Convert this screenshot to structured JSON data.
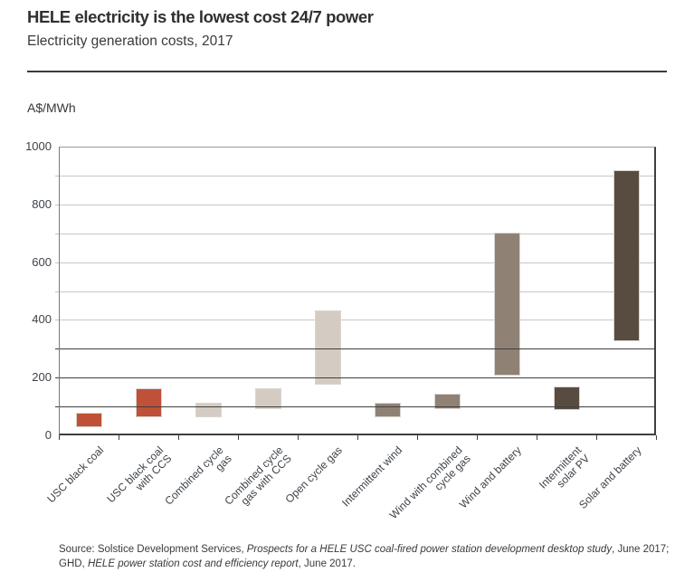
{
  "header": {
    "title": "HELE electricity is the lowest cost 24/7 power",
    "subtitle": "Electricity generation costs, 2017"
  },
  "chart_data": {
    "type": "bar",
    "subtype": "floating_range_columns",
    "title": "HELE electricity is the lowest cost 24/7 power",
    "subtitle": "Electricity generation costs, 2017",
    "ylabel": "A$/MWh",
    "xlabel": "",
    "ylim": [
      0,
      1000
    ],
    "ytick_labels": [
      "0",
      "200",
      "400",
      "600",
      "800",
      "1000"
    ],
    "gridline_values_light": [
      400,
      500,
      600,
      700,
      800,
      900
    ],
    "gridline_values_dark": [
      100,
      200,
      300
    ],
    "legend_position": "none",
    "categories": [
      "USC black coal",
      "USC black coal with CCS",
      "Combined cycle gas",
      "Combined cycle gas with CCS",
      "Open cycle gas",
      "Intermittent wind",
      "Wind with combined cycle gas",
      "Wind and battery",
      "Intermittent solar PV",
      "Solar and battery"
    ],
    "bars": [
      {
        "category": "USC black coal",
        "label_lines": [
          "USC black coal"
        ],
        "low": 30,
        "high": 75,
        "group": "coal"
      },
      {
        "category": "USC black coal with CCS",
        "label_lines": [
          "USC black coal",
          "with CCS"
        ],
        "low": 65,
        "high": 160,
        "group": "coal"
      },
      {
        "category": "Combined cycle gas",
        "label_lines": [
          "Combined cycle",
          "gas"
        ],
        "low": 65,
        "high": 110,
        "group": "gas"
      },
      {
        "category": "Combined cycle gas with CCS",
        "label_lines": [
          "Combined cycle",
          "gas with CCS"
        ],
        "low": 95,
        "high": 160,
        "group": "gas"
      },
      {
        "category": "Open cycle gas",
        "label_lines": [
          "Open cycle gas"
        ],
        "low": 180,
        "high": 430,
        "group": "gas"
      },
      {
        "category": "Intermittent wind",
        "label_lines": [
          "Intermittent wind"
        ],
        "low": 65,
        "high": 110,
        "group": "wind"
      },
      {
        "category": "Wind with combined cycle gas",
        "label_lines": [
          "Wind with combined",
          "cycle gas"
        ],
        "low": 95,
        "high": 140,
        "group": "wind"
      },
      {
        "category": "Wind and battery",
        "label_lines": [
          "Wind and battery"
        ],
        "low": 210,
        "high": 700,
        "group": "wind"
      },
      {
        "category": "Intermittent solar PV",
        "label_lines": [
          "Intermittent",
          "solar PV"
        ],
        "low": 90,
        "high": 165,
        "group": "solar"
      },
      {
        "category": "Solar and battery",
        "label_lines": [
          "Solar and battery"
        ],
        "low": 330,
        "high": 915,
        "group": "solar"
      }
    ],
    "group_colors": {
      "coal": "#bf5138",
      "gas": "#d4ccc2",
      "wind": "#8f8275",
      "solar": "#584c41"
    }
  },
  "source": {
    "parts": [
      {
        "text": "Source: Solstice Development Services, ",
        "italic": false
      },
      {
        "text": "Prospects for a HELE USC coal-fired power station development desktop study",
        "italic": true
      },
      {
        "text": ", June 2017;",
        "italic": false
      },
      {
        "break": true
      },
      {
        "text": "GHD, ",
        "italic": false
      },
      {
        "text": "HELE power station cost and efficiency report",
        "italic": true
      },
      {
        "text": ", June 2017.",
        "italic": false
      }
    ]
  },
  "colors": {
    "background": "#ffffff",
    "title_text": "#332f2e",
    "body_text": "#3a3a3a",
    "axis_text": "#3d4248",
    "gridline_light": "#c9c6c3",
    "gridline_dark": "#3f3f3f",
    "frame_light": "#9b9998",
    "axis_dark": "#3f3f3f",
    "bar_border": "#d9d5d0"
  }
}
